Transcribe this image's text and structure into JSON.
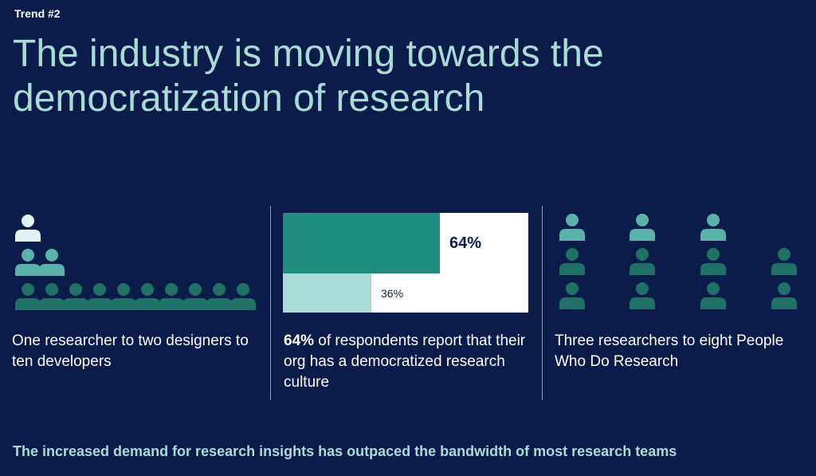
{
  "header": {
    "trend_label": "Trend #2",
    "title": "The industry is moving towards the democratization of research"
  },
  "colors": {
    "background": "#0b1b4a",
    "title": "#a9dcd5",
    "researcher": "#dff3f0",
    "designer": "#5bb2aa",
    "developer": "#1f7166",
    "pwdr": "#1f7166",
    "bar_primary": "#1f8c7e",
    "bar_secondary": "#a9dcd5"
  },
  "panels": {
    "left": {
      "groups": [
        {
          "role": "researcher",
          "count": 1
        },
        {
          "role": "designer",
          "count": 2
        },
        {
          "role": "developer",
          "count": 10
        }
      ],
      "caption": "One researcher to two designers to ten developers"
    },
    "middle": {
      "bars": [
        {
          "value": 64,
          "label": "64%",
          "color": "#1f8c7e"
        },
        {
          "value": 36,
          "label": "36%",
          "color": "#a9dcd5"
        }
      ],
      "caption_bold": "64%",
      "caption_rest": " of respondents report that their org has a democratized research culture"
    },
    "right": {
      "researchers": 3,
      "people_who_do_research": 8,
      "caption": "Three researchers to eight People Who Do Research"
    }
  },
  "footer": {
    "text": "The increased demand for research insights has outpaced the bandwidth of most research teams"
  }
}
